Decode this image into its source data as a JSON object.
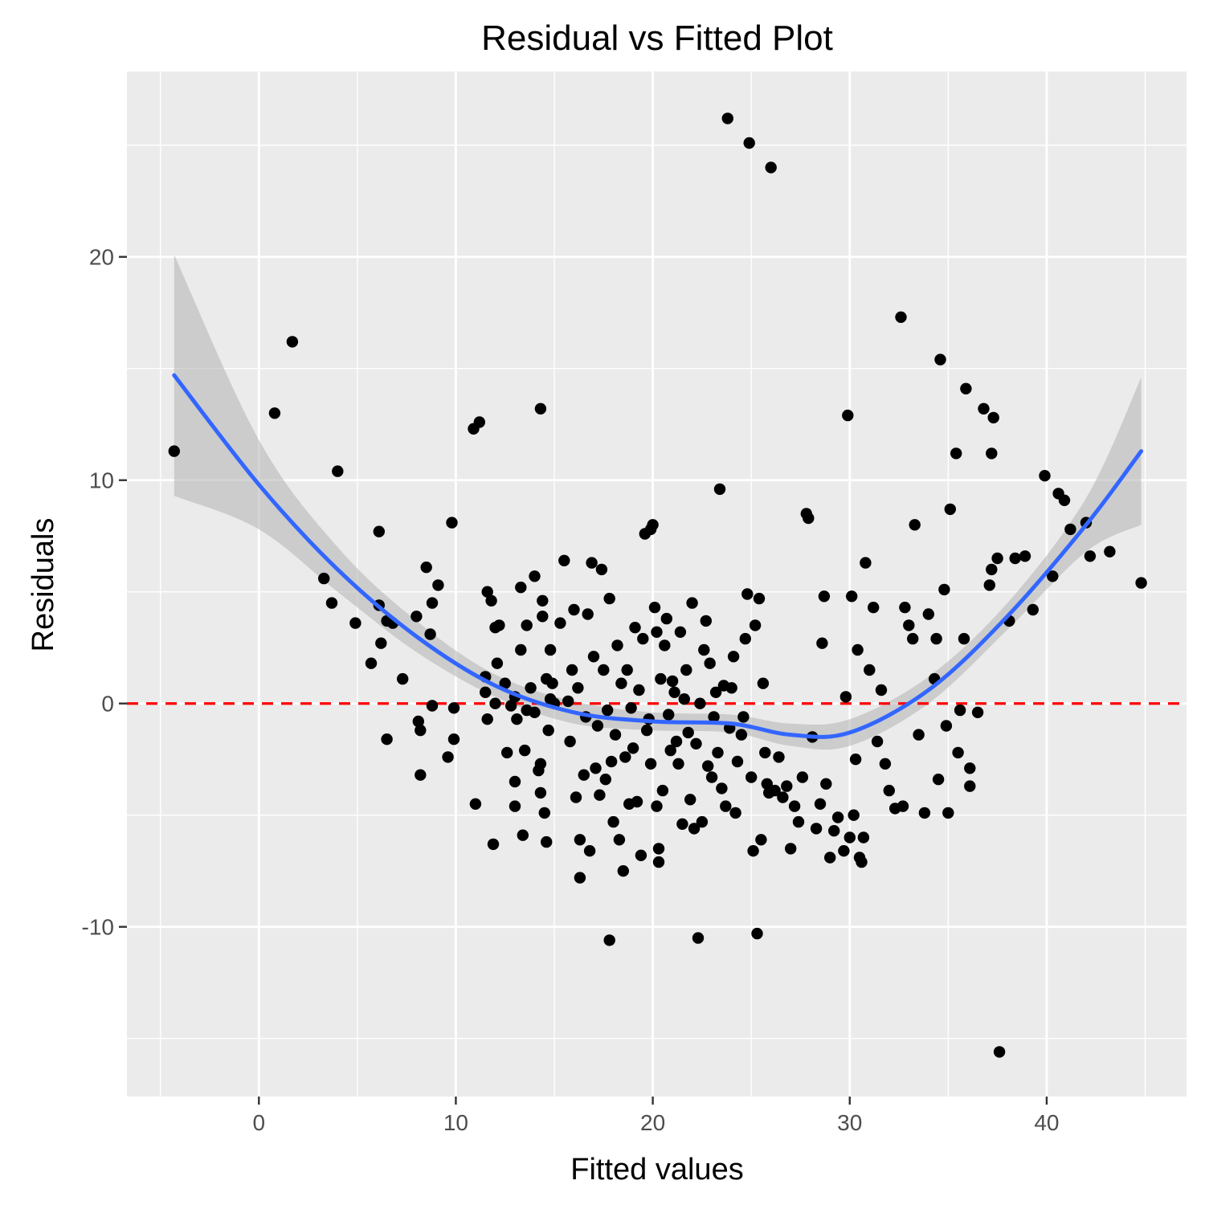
{
  "chart_data": {
    "type": "scatter",
    "title": "Residual vs Fitted Plot",
    "xlabel": "Fitted values",
    "ylabel": "Residuals",
    "xlim": [
      -6.7,
      47.1
    ],
    "ylim": [
      -17.6,
      28.3
    ],
    "x_ticks": [
      0,
      10,
      20,
      30,
      40
    ],
    "y_ticks": [
      -10,
      0,
      10,
      20
    ],
    "x_tick_labels": [
      "0",
      "10",
      "20",
      "30",
      "40"
    ],
    "y_tick_labels": [
      "-10",
      "0",
      "10",
      "20"
    ],
    "grid": true,
    "legend": "none",
    "colors": {
      "panel_background": "#ebebeb",
      "grid": "#ffffff",
      "points": "#000000",
      "smooth_line": "#3366ff",
      "confidence_band": "#b3b3b3",
      "reference_line": "#ff0000"
    },
    "reference_line": {
      "y": 0,
      "style": "dashed"
    },
    "smooth": {
      "method": "loess",
      "x": [
        -4.3,
        0,
        4,
        8,
        12,
        16,
        20,
        24,
        27,
        30,
        34,
        38,
        42,
        44.8
      ],
      "fit": [
        14.7,
        9.8,
        6.0,
        3.0,
        0.8,
        -0.4,
        -0.8,
        -0.9,
        -1.4,
        -1.3,
        0.6,
        3.9,
        8.0,
        11.3
      ],
      "lower": [
        9.3,
        7.8,
        5.0,
        2.3,
        0.3,
        -0.9,
        -1.2,
        -1.3,
        -1.9,
        -1.9,
        0.0,
        3.3,
        6.8,
        8.0
      ],
      "upper": [
        20.1,
        11.8,
        7.0,
        3.7,
        1.3,
        0.1,
        -0.4,
        -0.5,
        -0.9,
        -0.7,
        1.2,
        4.5,
        9.2,
        14.6
      ]
    },
    "points": [
      [
        -4.3,
        11.3
      ],
      [
        0.8,
        13.0
      ],
      [
        1.7,
        16.2
      ],
      [
        3.3,
        5.6
      ],
      [
        3.7,
        4.5
      ],
      [
        4.0,
        10.4
      ],
      [
        4.9,
        3.6
      ],
      [
        5.7,
        1.8
      ],
      [
        6.1,
        7.7
      ],
      [
        6.1,
        4.4
      ],
      [
        6.2,
        2.7
      ],
      [
        6.5,
        -1.6
      ],
      [
        6.5,
        3.7
      ],
      [
        6.8,
        3.6
      ],
      [
        7.3,
        1.1
      ],
      [
        8.0,
        3.9
      ],
      [
        8.1,
        -0.8
      ],
      [
        8.2,
        -3.2
      ],
      [
        8.2,
        -1.2
      ],
      [
        8.5,
        6.1
      ],
      [
        8.7,
        3.1
      ],
      [
        8.8,
        4.5
      ],
      [
        8.8,
        -0.1
      ],
      [
        9.1,
        5.3
      ],
      [
        9.6,
        -2.4
      ],
      [
        9.8,
        8.1
      ],
      [
        9.9,
        -1.6
      ],
      [
        9.9,
        -0.2
      ],
      [
        10.9,
        12.3
      ],
      [
        11.0,
        -4.5
      ],
      [
        11.2,
        12.6
      ],
      [
        11.5,
        1.2
      ],
      [
        11.5,
        0.5
      ],
      [
        11.6,
        -0.7
      ],
      [
        11.6,
        5.0
      ],
      [
        11.8,
        4.6
      ],
      [
        11.9,
        -6.3
      ],
      [
        12.0,
        3.4
      ],
      [
        12.0,
        0.0
      ],
      [
        12.1,
        1.8
      ],
      [
        12.2,
        3.5
      ],
      [
        12.5,
        0.9
      ],
      [
        12.6,
        -2.2
      ],
      [
        12.8,
        -0.1
      ],
      [
        13.0,
        0.3
      ],
      [
        13.0,
        -3.5
      ],
      [
        13.0,
        -4.6
      ],
      [
        13.1,
        -0.7
      ],
      [
        13.3,
        2.4
      ],
      [
        13.3,
        5.2
      ],
      [
        13.4,
        -5.9
      ],
      [
        13.5,
        -2.1
      ],
      [
        13.6,
        -0.3
      ],
      [
        13.6,
        3.5
      ],
      [
        13.8,
        0.7
      ],
      [
        14.0,
        5.7
      ],
      [
        14.0,
        -0.4
      ],
      [
        14.2,
        -3.0
      ],
      [
        14.3,
        13.2
      ],
      [
        14.3,
        -2.7
      ],
      [
        14.3,
        -4.0
      ],
      [
        14.4,
        4.6
      ],
      [
        14.4,
        3.9
      ],
      [
        14.5,
        -4.9
      ],
      [
        14.6,
        -6.2
      ],
      [
        14.6,
        1.1
      ],
      [
        14.7,
        -1.2
      ],
      [
        14.8,
        0.2
      ],
      [
        14.8,
        2.4
      ],
      [
        14.9,
        0.9
      ],
      [
        15.0,
        0.0
      ],
      [
        15.3,
        3.6
      ],
      [
        15.5,
        6.4
      ],
      [
        15.7,
        0.1
      ],
      [
        15.8,
        -1.7
      ],
      [
        15.9,
        1.5
      ],
      [
        16.0,
        4.2
      ],
      [
        16.1,
        -4.2
      ],
      [
        16.2,
        0.7
      ],
      [
        16.3,
        -6.1
      ],
      [
        16.3,
        -7.8
      ],
      [
        16.5,
        -3.2
      ],
      [
        16.6,
        -0.6
      ],
      [
        16.7,
        4.0
      ],
      [
        16.8,
        -6.6
      ],
      [
        16.9,
        6.3
      ],
      [
        17.0,
        2.1
      ],
      [
        17.1,
        -2.9
      ],
      [
        17.2,
        -1.0
      ],
      [
        17.3,
        -4.1
      ],
      [
        17.4,
        6.0
      ],
      [
        17.5,
        1.5
      ],
      [
        17.6,
        -3.4
      ],
      [
        17.7,
        -0.3
      ],
      [
        17.8,
        -10.6
      ],
      [
        17.8,
        4.7
      ],
      [
        17.9,
        -2.6
      ],
      [
        18.0,
        -5.3
      ],
      [
        18.1,
        -1.4
      ],
      [
        18.2,
        2.6
      ],
      [
        18.3,
        -6.1
      ],
      [
        18.4,
        0.9
      ],
      [
        18.5,
        -7.5
      ],
      [
        18.6,
        -2.4
      ],
      [
        18.7,
        1.5
      ],
      [
        18.8,
        -4.5
      ],
      [
        18.9,
        -0.2
      ],
      [
        19.0,
        -2.0
      ],
      [
        19.1,
        3.4
      ],
      [
        19.2,
        -4.4
      ],
      [
        19.3,
        0.6
      ],
      [
        19.4,
        -6.8
      ],
      [
        19.5,
        2.9
      ],
      [
        19.6,
        7.6
      ],
      [
        19.7,
        -1.2
      ],
      [
        19.8,
        -0.7
      ],
      [
        19.9,
        7.8
      ],
      [
        19.9,
        -2.7
      ],
      [
        20.0,
        8.0
      ],
      [
        20.1,
        4.3
      ],
      [
        20.2,
        3.2
      ],
      [
        20.2,
        -4.6
      ],
      [
        20.3,
        -6.5
      ],
      [
        20.3,
        -7.1
      ],
      [
        20.4,
        1.1
      ],
      [
        20.5,
        -3.9
      ],
      [
        20.6,
        2.6
      ],
      [
        20.7,
        3.8
      ],
      [
        20.8,
        -0.5
      ],
      [
        20.9,
        -2.1
      ],
      [
        21.0,
        1.0
      ],
      [
        21.1,
        0.5
      ],
      [
        21.2,
        -1.7
      ],
      [
        21.3,
        -2.7
      ],
      [
        21.4,
        3.2
      ],
      [
        21.5,
        -5.4
      ],
      [
        21.6,
        0.2
      ],
      [
        21.7,
        1.5
      ],
      [
        21.8,
        -1.3
      ],
      [
        21.9,
        -4.3
      ],
      [
        22.0,
        4.5
      ],
      [
        22.1,
        -5.6
      ],
      [
        22.2,
        -1.8
      ],
      [
        22.3,
        -10.5
      ],
      [
        22.4,
        0.0
      ],
      [
        22.5,
        -5.3
      ],
      [
        22.6,
        2.4
      ],
      [
        22.7,
        3.7
      ],
      [
        22.8,
        -2.8
      ],
      [
        22.9,
        1.8
      ],
      [
        23.0,
        -3.3
      ],
      [
        23.1,
        -0.6
      ],
      [
        23.2,
        0.5
      ],
      [
        23.3,
        -2.2
      ],
      [
        23.4,
        9.6
      ],
      [
        23.5,
        -3.8
      ],
      [
        23.6,
        0.8
      ],
      [
        23.7,
        -4.6
      ],
      [
        23.8,
        26.2
      ],
      [
        23.9,
        -1.1
      ],
      [
        24.0,
        0.7
      ],
      [
        24.1,
        2.1
      ],
      [
        24.2,
        -4.9
      ],
      [
        24.3,
        -2.6
      ],
      [
        24.5,
        -1.4
      ],
      [
        24.6,
        -0.6
      ],
      [
        24.7,
        2.9
      ],
      [
        24.8,
        4.9
      ],
      [
        24.9,
        25.1
      ],
      [
        25.0,
        -3.3
      ],
      [
        25.1,
        -6.6
      ],
      [
        25.2,
        3.5
      ],
      [
        25.3,
        -10.3
      ],
      [
        25.4,
        4.7
      ],
      [
        25.5,
        -6.1
      ],
      [
        25.6,
        0.9
      ],
      [
        25.7,
        -2.2
      ],
      [
        25.8,
        -3.6
      ],
      [
        25.9,
        -4.0
      ],
      [
        26.0,
        24.0
      ],
      [
        26.2,
        -3.9
      ],
      [
        26.4,
        -2.4
      ],
      [
        26.6,
        -4.2
      ],
      [
        26.8,
        -3.7
      ],
      [
        27.0,
        -6.5
      ],
      [
        27.2,
        -4.6
      ],
      [
        27.4,
        -5.3
      ],
      [
        27.6,
        -3.3
      ],
      [
        27.8,
        8.5
      ],
      [
        27.9,
        8.3
      ],
      [
        28.1,
        -1.5
      ],
      [
        28.3,
        -5.6
      ],
      [
        28.5,
        -4.5
      ],
      [
        28.6,
        2.7
      ],
      [
        28.7,
        4.8
      ],
      [
        28.8,
        -3.6
      ],
      [
        29.0,
        -6.9
      ],
      [
        29.2,
        -5.7
      ],
      [
        29.4,
        -5.1
      ],
      [
        29.7,
        -6.6
      ],
      [
        29.8,
        0.3
      ],
      [
        29.9,
        12.9
      ],
      [
        30.0,
        -6.0
      ],
      [
        30.1,
        4.8
      ],
      [
        30.2,
        -5.0
      ],
      [
        30.3,
        -2.5
      ],
      [
        30.4,
        2.4
      ],
      [
        30.5,
        -6.9
      ],
      [
        30.6,
        -7.1
      ],
      [
        30.7,
        -6.0
      ],
      [
        30.8,
        6.3
      ],
      [
        31.0,
        1.5
      ],
      [
        31.2,
        4.3
      ],
      [
        31.4,
        -1.7
      ],
      [
        31.6,
        0.6
      ],
      [
        31.8,
        -2.7
      ],
      [
        32.0,
        -3.9
      ],
      [
        32.3,
        -4.7
      ],
      [
        32.6,
        17.3
      ],
      [
        32.7,
        -4.6
      ],
      [
        32.8,
        4.3
      ],
      [
        33.0,
        3.5
      ],
      [
        33.2,
        2.9
      ],
      [
        33.3,
        8.0
      ],
      [
        33.5,
        -1.4
      ],
      [
        33.8,
        -4.9
      ],
      [
        34.0,
        4.0
      ],
      [
        34.3,
        1.1
      ],
      [
        34.4,
        2.9
      ],
      [
        34.5,
        -3.4
      ],
      [
        34.6,
        15.4
      ],
      [
        34.8,
        5.1
      ],
      [
        34.9,
        -1.0
      ],
      [
        35.0,
        -4.9
      ],
      [
        35.1,
        8.7
      ],
      [
        35.4,
        11.2
      ],
      [
        35.5,
        -2.2
      ],
      [
        35.6,
        -0.3
      ],
      [
        35.8,
        2.9
      ],
      [
        35.9,
        14.1
      ],
      [
        36.1,
        -2.9
      ],
      [
        36.1,
        -3.7
      ],
      [
        36.5,
        -0.4
      ],
      [
        36.8,
        13.2
      ],
      [
        37.1,
        5.3
      ],
      [
        37.2,
        6.0
      ],
      [
        37.2,
        11.2
      ],
      [
        37.3,
        12.8
      ],
      [
        37.5,
        6.5
      ],
      [
        37.6,
        -15.6
      ],
      [
        38.1,
        3.7
      ],
      [
        38.4,
        6.5
      ],
      [
        38.9,
        6.6
      ],
      [
        39.3,
        4.2
      ],
      [
        39.9,
        10.2
      ],
      [
        40.3,
        5.7
      ],
      [
        40.6,
        9.4
      ],
      [
        40.9,
        9.1
      ],
      [
        41.2,
        7.8
      ],
      [
        42.0,
        8.1
      ],
      [
        42.2,
        6.6
      ],
      [
        43.2,
        6.8
      ],
      [
        44.8,
        5.4
      ]
    ]
  }
}
